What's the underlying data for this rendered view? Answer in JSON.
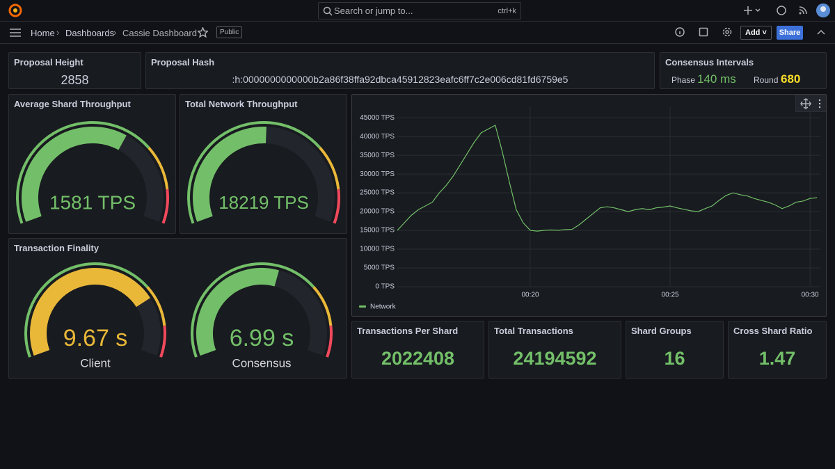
{
  "topbar": {
    "search": "Search or jump to...",
    "shortcut": "ctrl+k"
  },
  "nav": {
    "breadcrumbs": [
      "Home",
      "Dashboards",
      "Cassie Dashboard"
    ],
    "badge": "Public",
    "add": "Add",
    "share": "Share"
  },
  "panels": {
    "proposal_height": {
      "title": "Proposal Height",
      "value": "2858"
    },
    "proposal_hash": {
      "title": "Proposal Hash",
      "value": ":h:0000000000000b2a86f38ffa92dbca45912823eafc6ff7c2e006cd81fd6759e5"
    },
    "consensus_intervals": {
      "title": "Consensus Intervals",
      "items": [
        {
          "label": "Phase",
          "value": "140 ms"
        },
        {
          "label": "Round",
          "value": "680"
        }
      ]
    },
    "average_shard_throughput": {
      "title": "Average Shard Throughput",
      "value": "1581 TPS"
    },
    "total_network_throughput": {
      "title": "Total Network Throughput",
      "value": "18219 TPS"
    },
    "transaction_finality": {
      "title": "Transaction Finality",
      "gauges": [
        {
          "value": "9.67 s",
          "label": "Client"
        },
        {
          "value": "6.99 s",
          "label": "Consensus"
        }
      ]
    },
    "stats": [
      {
        "title": "Transactions Per Shard",
        "value": "2022408"
      },
      {
        "title": "Total Transactions",
        "value": "24194592"
      },
      {
        "title": "Shard Groups",
        "value": "16"
      },
      {
        "title": "Cross Shard Ratio",
        "value": "1.47"
      }
    ]
  },
  "chart_data": {
    "type": "line",
    "x": [
      15.25,
      15.5,
      15.75,
      16,
      16.25,
      16.5,
      16.75,
      17,
      17.25,
      17.5,
      17.75,
      18,
      18.25,
      18.5,
      18.75,
      19,
      19.25,
      19.5,
      19.75,
      20,
      20.25,
      20.5,
      20.75,
      21,
      21.25,
      21.5,
      21.75,
      22,
      22.25,
      22.5,
      22.75,
      23,
      23.25,
      23.5,
      23.75,
      24,
      24.25,
      24.5,
      24.75,
      25,
      25.25,
      25.5,
      25.75,
      26,
      26.25,
      26.5,
      26.75,
      27,
      27.25,
      27.5,
      27.75,
      28,
      28.25,
      28.5,
      28.75,
      29,
      29.25,
      29.5,
      29.75,
      30,
      30.25
    ],
    "series": [
      {
        "name": "Network",
        "color": "#73bf69",
        "values": [
          15000,
          17000,
          19000,
          20500,
          21500,
          22500,
          25000,
          27000,
          29500,
          32500,
          35500,
          38500,
          41000,
          42000,
          43000,
          36000,
          28000,
          20500,
          17000,
          15000,
          14800,
          15000,
          15100,
          15000,
          15200,
          15300,
          16500,
          18000,
          19500,
          21000,
          21300,
          21000,
          20500,
          20000,
          20500,
          20800,
          20500,
          21000,
          21200,
          21500,
          21000,
          20600,
          20200,
          20000,
          20800,
          21500,
          23000,
          24300,
          25000,
          24500,
          24200,
          23500,
          23000,
          22500,
          21800,
          20800,
          21500,
          22500,
          22800,
          23500,
          23700
        ]
      }
    ],
    "xlim": [
      15.25,
      30.37
    ],
    "ylim": [
      0,
      48000
    ],
    "xticks": [
      {
        "value": 20,
        "label": "00:20"
      },
      {
        "value": 25,
        "label": "00:25"
      },
      {
        "value": 30,
        "label": "00:30"
      }
    ],
    "yticks": [
      {
        "value": 0,
        "label": "0 TPS"
      },
      {
        "value": 5000,
        "label": "5000 TPS"
      },
      {
        "value": 10000,
        "label": "10000 TPS"
      },
      {
        "value": 15000,
        "label": "15000 TPS"
      },
      {
        "value": 20000,
        "label": "20000 TPS"
      },
      {
        "value": 25000,
        "label": "25000 TPS"
      },
      {
        "value": 30000,
        "label": "30000 TPS"
      },
      {
        "value": 35000,
        "label": "35000 TPS"
      },
      {
        "value": 40000,
        "label": "40000 TPS"
      },
      {
        "value": 45000,
        "label": "45000 TPS"
      }
    ],
    "grid": true
  }
}
